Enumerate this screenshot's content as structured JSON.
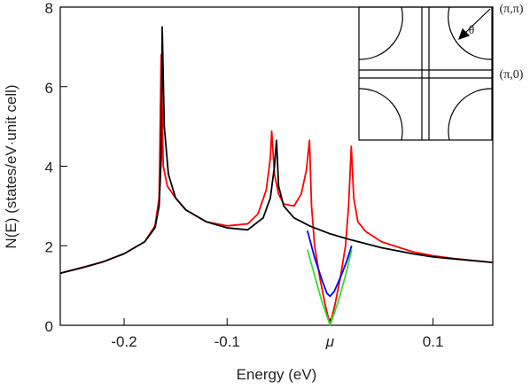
{
  "chart_data": {
    "type": "line",
    "xlabel": "Energy (eV)",
    "ylabel": "N(E) (states/eV·unit cell)",
    "xlim": [
      -0.262,
      0.158
    ],
    "ylim": [
      0,
      8
    ],
    "xticks": [
      -0.2,
      -0.1,
      {
        "value": 0,
        "label": "μ"
      },
      0.1
    ],
    "yticks": [
      0,
      2,
      4,
      6,
      8
    ],
    "inset_labels": [
      "(π,π)",
      "(π,0)",
      "θ"
    ],
    "series": [
      {
        "color": "#ff0000",
        "x": [
          -0.262,
          -0.22,
          -0.2,
          -0.18,
          -0.17,
          -0.166,
          -0.164,
          -0.162,
          -0.158,
          -0.15,
          -0.14,
          -0.12,
          -0.1,
          -0.08,
          -0.07,
          -0.062,
          -0.058,
          -0.0567,
          -0.054,
          -0.05,
          -0.045,
          -0.035,
          -0.028,
          -0.023,
          -0.02,
          -0.018,
          -0.015,
          -0.01,
          -0.005,
          0,
          0.005,
          0.01,
          0.015,
          0.018,
          0.0206,
          0.023,
          0.027,
          0.035,
          0.05,
          0.08,
          0.1,
          0.12,
          0.158
        ],
        "values": [
          1.31,
          1.6,
          1.8,
          2.1,
          2.5,
          3.2,
          6.8,
          4.0,
          3.5,
          3.2,
          2.9,
          2.6,
          2.5,
          2.55,
          2.8,
          3.4,
          4.2,
          4.88,
          3.8,
          3.3,
          3.05,
          3.0,
          3.3,
          3.9,
          4.65,
          3.0,
          2.0,
          1.2,
          0.55,
          0,
          0.55,
          1.2,
          2.0,
          3.0,
          4.5,
          3.2,
          2.6,
          2.35,
          2.1,
          1.85,
          1.75,
          1.68,
          1.58
        ]
      },
      {
        "color": "#000000",
        "x": [
          -0.262,
          -0.24,
          -0.22,
          -0.2,
          -0.18,
          -0.17,
          -0.166,
          -0.164,
          -0.163,
          -0.161,
          -0.157,
          -0.15,
          -0.14,
          -0.12,
          -0.1,
          -0.08,
          -0.065,
          -0.058,
          -0.054,
          -0.052,
          -0.05,
          -0.045,
          -0.035,
          -0.02,
          0,
          0.02,
          0.05,
          0.08,
          0.1,
          0.12,
          0.158
        ],
        "values": [
          1.31,
          1.45,
          1.6,
          1.8,
          2.1,
          2.45,
          3.0,
          4.2,
          7.5,
          5.0,
          3.8,
          3.2,
          2.9,
          2.6,
          2.45,
          2.4,
          2.7,
          3.2,
          4.0,
          4.65,
          3.5,
          3.0,
          2.7,
          2.5,
          2.3,
          2.15,
          1.95,
          1.8,
          1.72,
          1.67,
          1.58
        ]
      },
      {
        "color": "#0000ff",
        "x": [
          -0.022,
          -0.015,
          -0.008,
          -0.003,
          0,
          0.004,
          0.01,
          0.016,
          0.021
        ],
        "values": [
          2.38,
          1.7,
          1.15,
          0.8,
          0.73,
          0.85,
          1.2,
          1.6,
          2.0
        ]
      },
      {
        "color": "#33dd33",
        "x": [
          -0.022,
          -0.015,
          -0.008,
          0,
          0.008,
          0.015,
          0.021
        ],
        "values": [
          1.9,
          1.25,
          0.6,
          0,
          0.6,
          1.25,
          1.9
        ]
      }
    ]
  }
}
